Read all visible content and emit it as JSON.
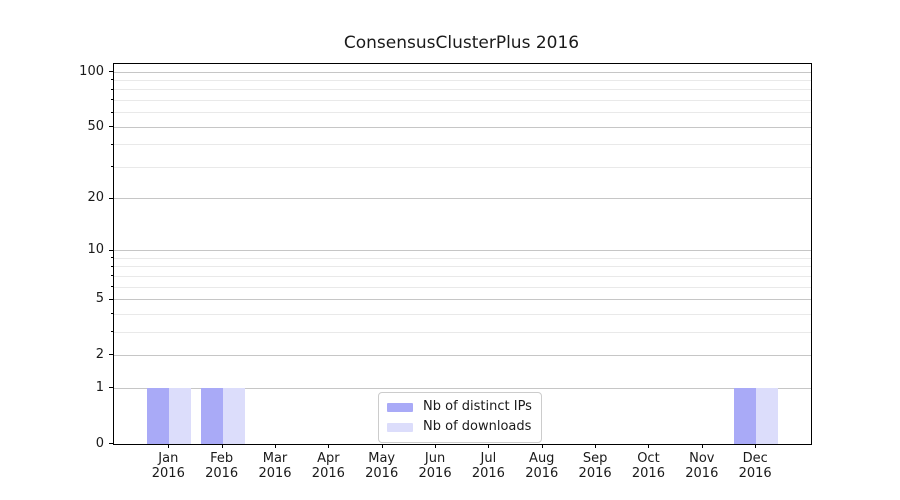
{
  "chart_data": {
    "type": "bar",
    "title": "ConsensusClusterPlus 2016",
    "xlabel": "",
    "ylabel": "",
    "x": [
      "Jan 2016",
      "Feb 2016",
      "Mar 2016",
      "Apr 2016",
      "May 2016",
      "Jun 2016",
      "Jul 2016",
      "Aug 2016",
      "Sep 2016",
      "Oct 2016",
      "Nov 2016",
      "Dec 2016"
    ],
    "series": [
      {
        "name": "Nb of distinct IPs",
        "color": "#a9aaf7",
        "values": [
          1,
          1,
          0,
          0,
          0,
          0,
          0,
          0,
          0,
          0,
          0,
          1
        ]
      },
      {
        "name": "Nb of downloads",
        "color": "#dcddfb",
        "values": [
          1,
          1,
          0,
          0,
          0,
          0,
          0,
          0,
          0,
          0,
          0,
          1
        ]
      }
    ],
    "y_scale": "log1p",
    "ylim": [
      0,
      110
    ],
    "y_major_ticks": [
      0,
      1,
      2,
      5,
      10,
      20,
      50,
      100
    ],
    "y_minor_gridlines": [
      3,
      4,
      6,
      7,
      8,
      9,
      30,
      40,
      60,
      70,
      80,
      90
    ],
    "grid": true,
    "legend_position": "lower center"
  },
  "colors": {
    "major_grid": "#c6c6c6",
    "minor_grid": "#e9e9e9",
    "spine": "#000000",
    "text": "#1a1a1a",
    "legend_border": "#cccccc",
    "background": "#ffffff"
  }
}
